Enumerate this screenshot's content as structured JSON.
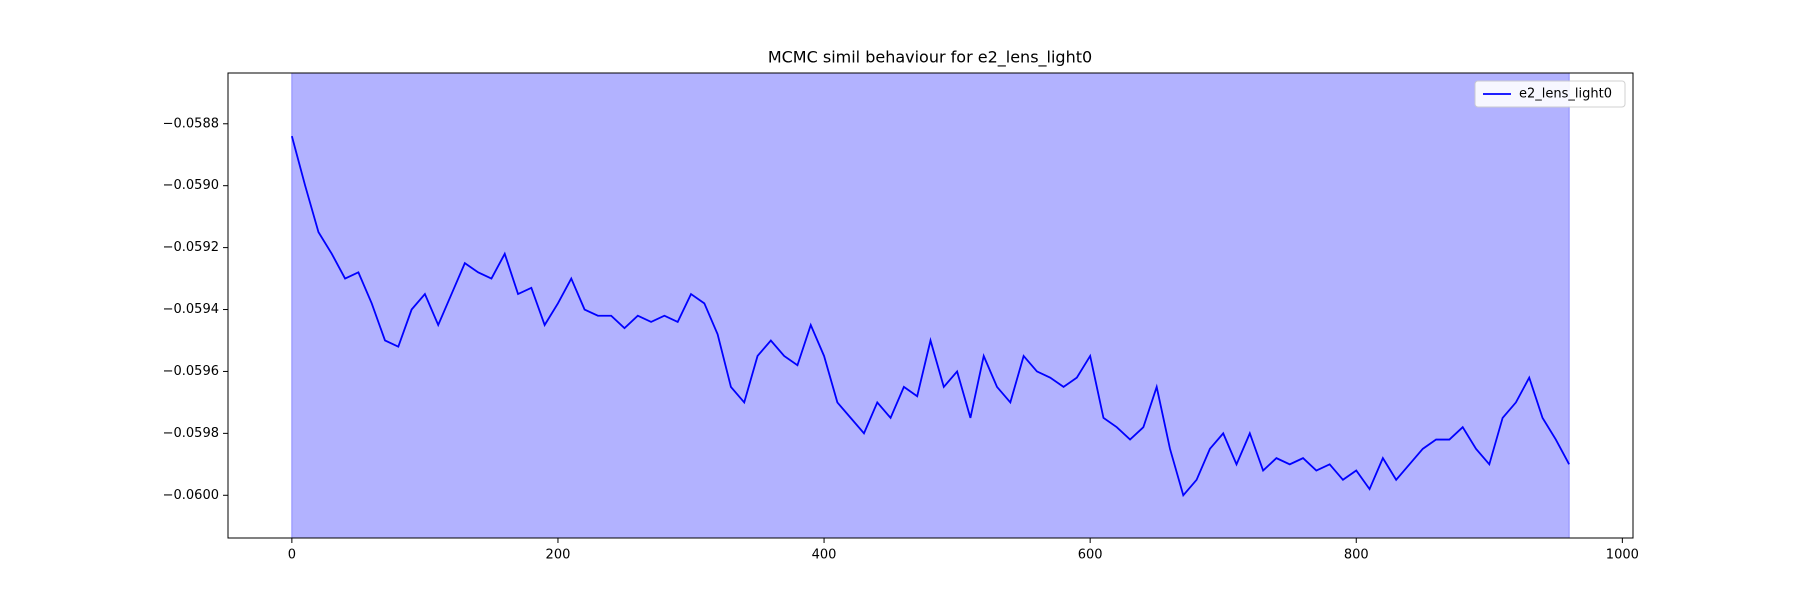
{
  "chart_data": {
    "type": "line",
    "title": "MCMC simil behaviour for e2_lens_light0",
    "x": [
      0,
      10,
      20,
      30,
      40,
      50,
      60,
      70,
      80,
      90,
      100,
      110,
      120,
      130,
      140,
      150,
      160,
      170,
      180,
      190,
      200,
      210,
      220,
      230,
      240,
      250,
      260,
      270,
      280,
      290,
      300,
      310,
      320,
      330,
      340,
      350,
      360,
      370,
      380,
      390,
      400,
      410,
      420,
      430,
      440,
      450,
      460,
      470,
      480,
      490,
      500,
      510,
      520,
      530,
      540,
      550,
      560,
      570,
      580,
      590,
      600,
      610,
      620,
      630,
      640,
      650,
      660,
      670,
      680,
      690,
      700,
      710,
      720,
      730,
      740,
      750,
      760,
      770,
      780,
      790,
      800,
      810,
      820,
      830,
      840,
      850,
      860,
      870,
      880,
      890,
      900,
      910,
      920,
      930,
      940,
      950,
      960
    ],
    "series": [
      {
        "name": "e2_lens_light0",
        "color": "#0000ff",
        "values": [
          -0.05884,
          -0.059,
          -0.05915,
          -0.05922,
          -0.0593,
          -0.05928,
          -0.05938,
          -0.0595,
          -0.05952,
          -0.0594,
          -0.05935,
          -0.05945,
          -0.05935,
          -0.05925,
          -0.05928,
          -0.0593,
          -0.05922,
          -0.05935,
          -0.05933,
          -0.05945,
          -0.05938,
          -0.0593,
          -0.0594,
          -0.05942,
          -0.05942,
          -0.05946,
          -0.05942,
          -0.05944,
          -0.05942,
          -0.05944,
          -0.05935,
          -0.05938,
          -0.05948,
          -0.05965,
          -0.0597,
          -0.05955,
          -0.0595,
          -0.05955,
          -0.05958,
          -0.05945,
          -0.05955,
          -0.0597,
          -0.05975,
          -0.0598,
          -0.0597,
          -0.05975,
          -0.05965,
          -0.05968,
          -0.0595,
          -0.05965,
          -0.0596,
          -0.05975,
          -0.05955,
          -0.05965,
          -0.0597,
          -0.05955,
          -0.0596,
          -0.05962,
          -0.05965,
          -0.05962,
          -0.05955,
          -0.05975,
          -0.05978,
          -0.05982,
          -0.05978,
          -0.05965,
          -0.05985,
          -0.06,
          -0.05995,
          -0.05985,
          -0.0598,
          -0.0599,
          -0.0598,
          -0.05992,
          -0.05988,
          -0.0599,
          -0.05988,
          -0.05992,
          -0.0599,
          -0.05995,
          -0.05992,
          -0.05998,
          -0.05988,
          -0.05995,
          -0.0599,
          -0.05985,
          -0.05982,
          -0.05982,
          -0.05978,
          -0.05985,
          -0.0599,
          -0.05975,
          -0.0597,
          -0.05962,
          -0.05975,
          -0.05982,
          -0.0599
        ]
      }
    ],
    "shaded_span": {
      "x": [
        0,
        960
      ],
      "color": "#b2b2ff"
    },
    "xlim": [
      -48,
      1008
    ],
    "xticks": [
      0,
      200,
      400,
      600,
      800,
      1000
    ],
    "ylim": [
      -0.060138,
      -0.058636
    ],
    "yticks": [
      {
        "value": -0.06,
        "label": "−0.0600"
      },
      {
        "value": -0.0598,
        "label": "−0.0598"
      },
      {
        "value": -0.0596,
        "label": "−0.0596"
      },
      {
        "value": -0.0594,
        "label": "−0.0594"
      },
      {
        "value": -0.0592,
        "label": "−0.0592"
      },
      {
        "value": -0.059,
        "label": "−0.0590"
      },
      {
        "value": -0.0588,
        "label": "−0.0588"
      }
    ],
    "legend": "upper right"
  }
}
